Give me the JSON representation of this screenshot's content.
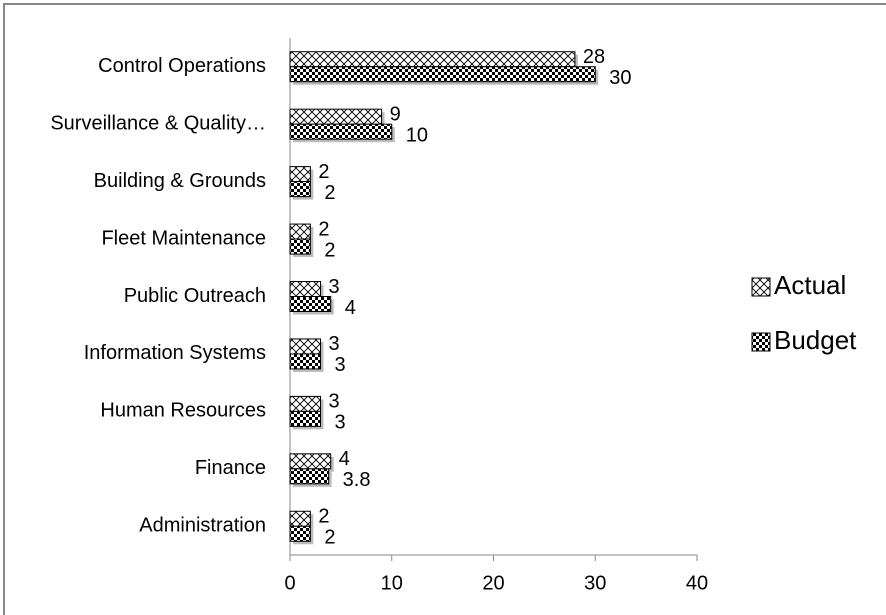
{
  "chart_data": {
    "type": "hbar",
    "categories": [
      "Control Operations",
      "Surveillance & Quality…",
      "Building & Grounds",
      "Fleet Maintenance",
      "Public Outreach",
      "Information Systems",
      "Human Resources",
      "Finance",
      "Administration"
    ],
    "series": [
      {
        "name": "Actual",
        "color": "#000000",
        "values": [
          28,
          9,
          2,
          2,
          3,
          3,
          3,
          4,
          2
        ]
      },
      {
        "name": "Budget",
        "color": "#000000",
        "values": [
          30,
          10,
          2,
          2,
          4,
          3,
          3,
          3.8,
          2
        ]
      }
    ],
    "xlim": [
      0,
      40
    ],
    "xticks": [
      0,
      10,
      20,
      30,
      40
    ],
    "legend": "right"
  }
}
